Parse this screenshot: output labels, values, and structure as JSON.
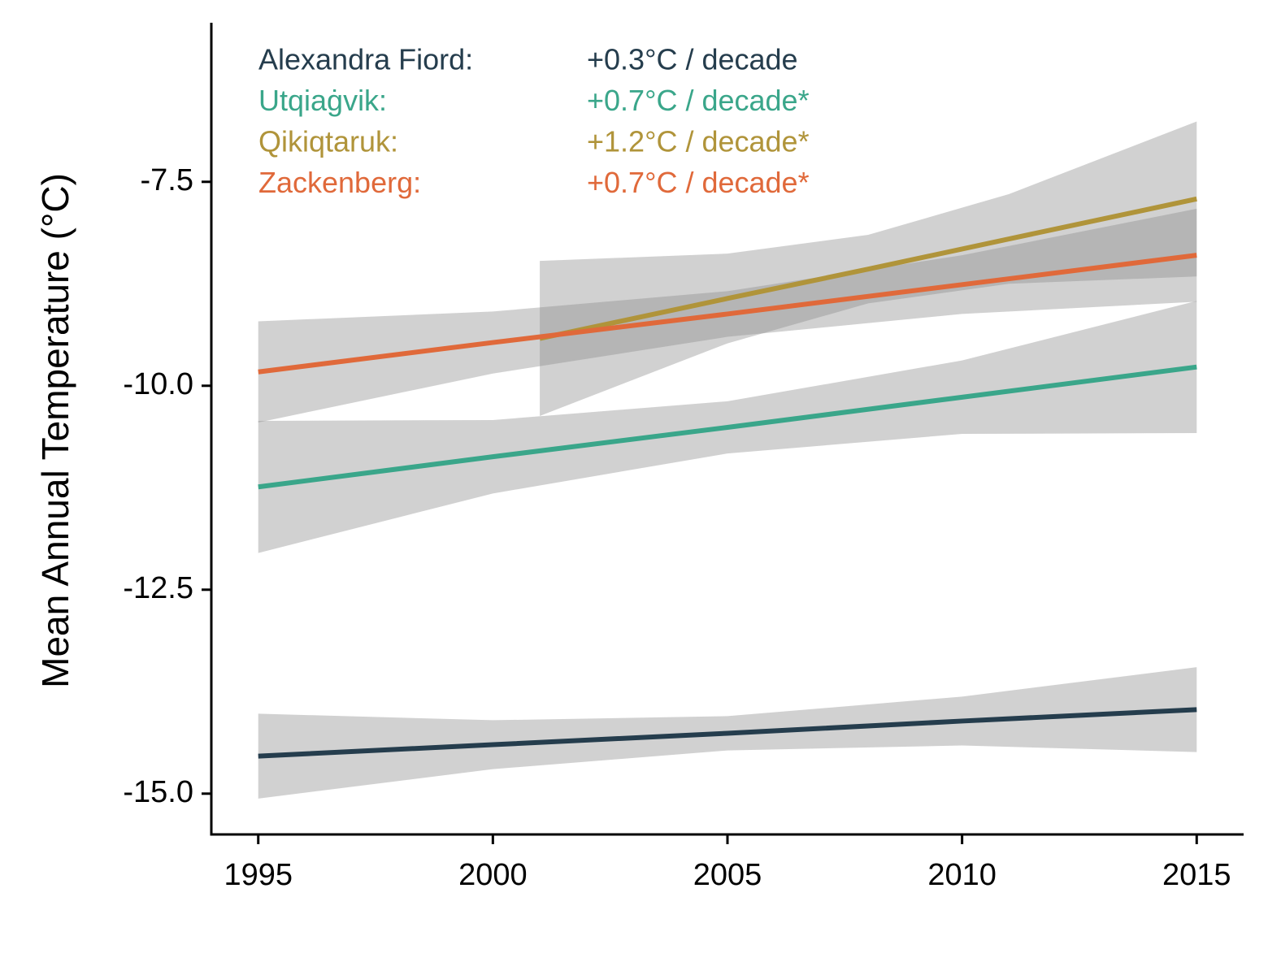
{
  "chart_data": {
    "type": "line",
    "y_label": "Mean Annual Temperature (°C)",
    "xlim": [
      1994,
      2016
    ],
    "xticks": [
      1995,
      2000,
      2005,
      2010,
      2015
    ],
    "ylim": [
      -15.5,
      -5.55
    ],
    "yticks": [
      -7.5,
      {
        "value": -10,
        "label": "-10.0"
      },
      -12.5,
      {
        "value": -15,
        "label": "-15.0"
      }
    ],
    "grid": false,
    "series": [
      {
        "name": "Alexandra Fiord:",
        "trend": "+0.3°C / decade",
        "color": "#253d4d",
        "x": [
          1995,
          2000,
          2005,
          2010,
          2015
        ],
        "values": [
          -14.54,
          -14.4,
          -14.26,
          -14.11,
          -13.97
        ],
        "upper": [
          -14.02,
          -14.1,
          -14.05,
          -13.81,
          -13.45
        ],
        "lower": [
          -15.06,
          -14.7,
          -14.47,
          -14.41,
          -14.49
        ]
      },
      {
        "name": "Utqiaġvik:",
        "trend": "+0.7°C / decade*",
        "color": "#3aa68a",
        "x": [
          1995,
          2000,
          2005,
          2010,
          2015
        ],
        "values": [
          -11.24,
          -10.87,
          -10.51,
          -10.14,
          -9.77
        ],
        "upper": [
          -10.43,
          -10.42,
          -10.19,
          -9.69,
          -8.96
        ],
        "lower": [
          -12.05,
          -11.32,
          -10.83,
          -10.59,
          -10.58
        ]
      },
      {
        "name": "Qikiqtaruk:",
        "trend": "+1.2°C / decade*",
        "color": "#b0943a",
        "x": [
          2001,
          2005,
          2008,
          2011,
          2015
        ],
        "values": [
          -9.42,
          -8.93,
          -8.57,
          -8.2,
          -7.71
        ],
        "upper": [
          -8.47,
          -8.38,
          -8.15,
          -7.65,
          -6.76
        ],
        "lower": [
          -10.37,
          -9.48,
          -8.99,
          -8.75,
          -8.66
        ]
      },
      {
        "name": "Zackenberg:",
        "trend": "+0.7°C / decade*",
        "color": "#e0693a",
        "x": [
          1995,
          2000,
          2005,
          2010,
          2015
        ],
        "values": [
          -9.83,
          -9.47,
          -9.12,
          -8.76,
          -8.4
        ],
        "upper": [
          -9.21,
          -9.09,
          -8.84,
          -8.4,
          -7.83
        ],
        "lower": [
          -10.45,
          -9.85,
          -9.4,
          -9.12,
          -8.97
        ]
      }
    ]
  }
}
